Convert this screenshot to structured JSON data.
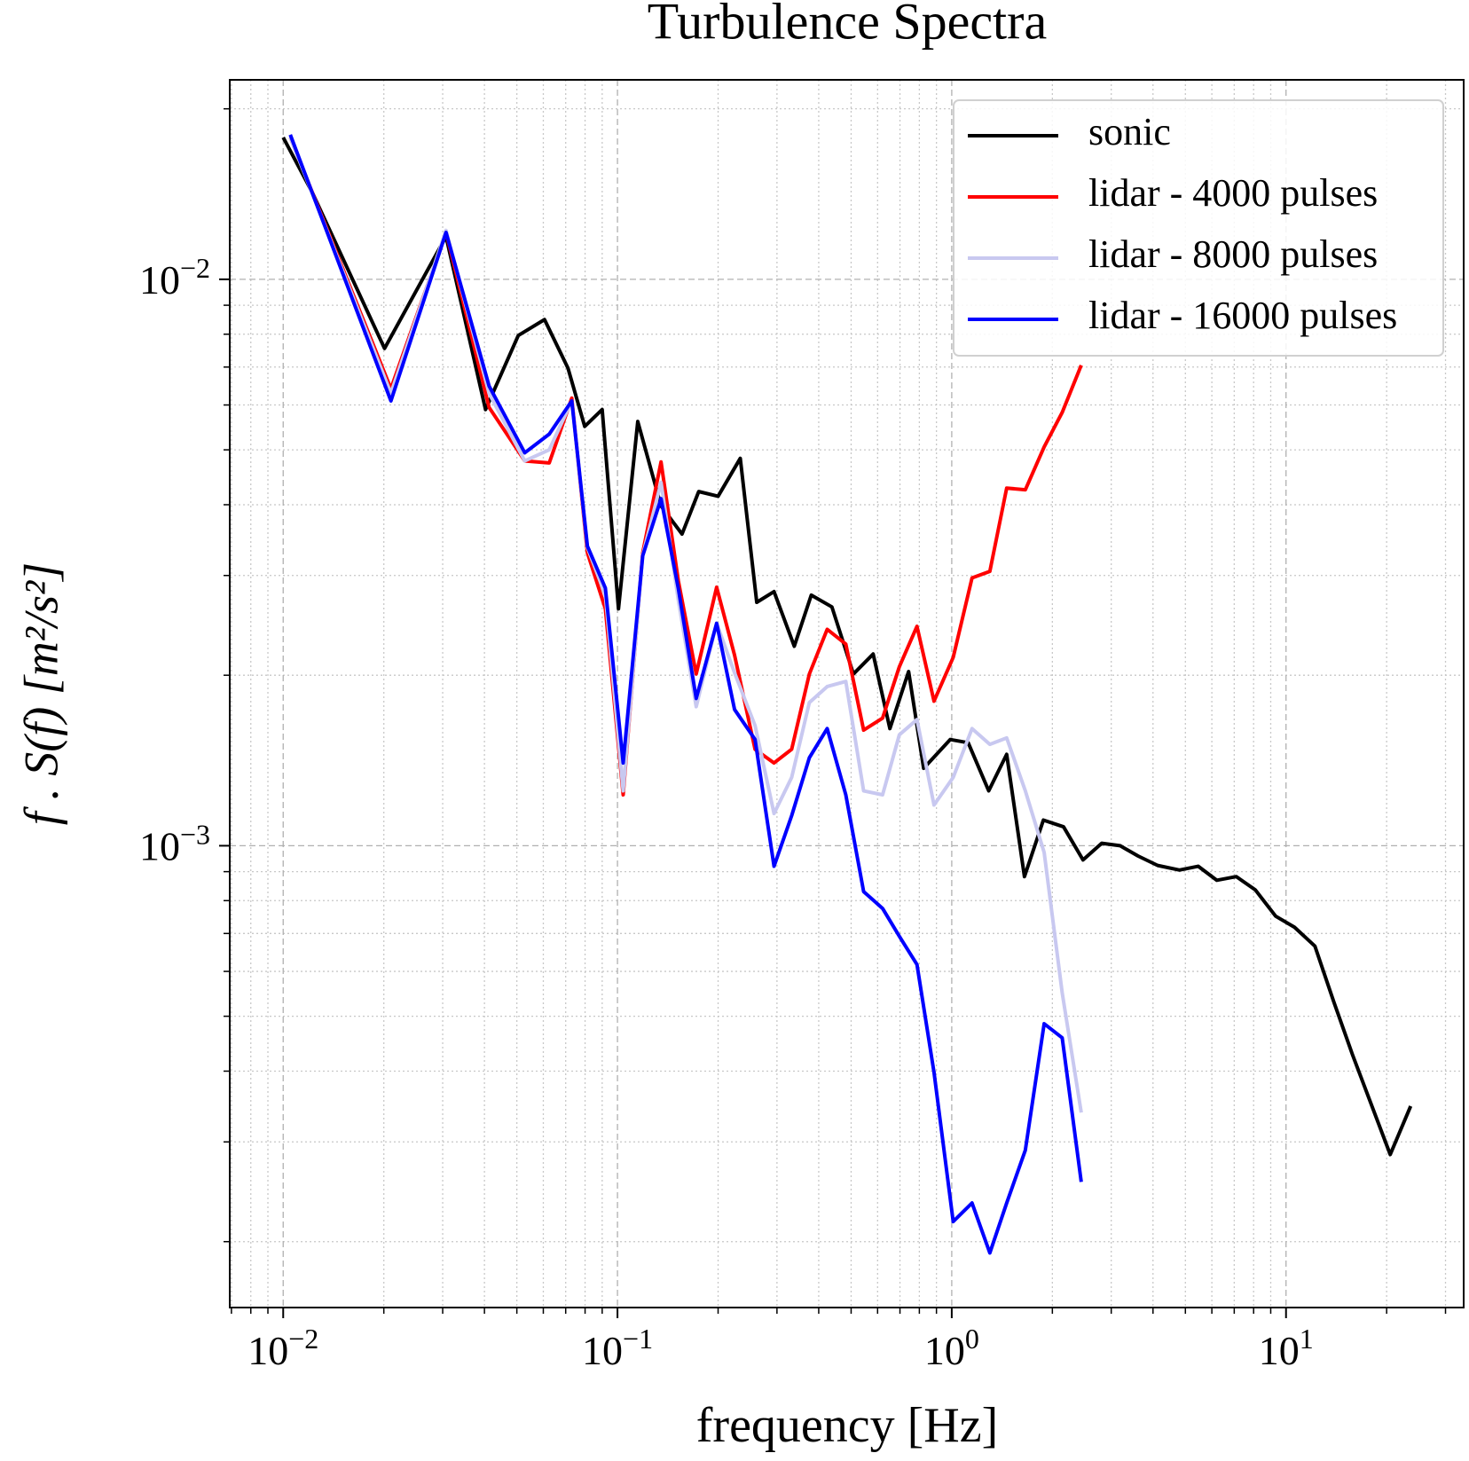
{
  "chart_data": {
    "type": "line",
    "title": "Turbulence Spectra",
    "x_label": "frequency [Hz]",
    "y_label": "f . S(f) [m²/s²]",
    "log_x": true,
    "log_y": true,
    "grid": true,
    "legend_position": "upper right",
    "xlim": [
      0.00692,
      34.0
    ],
    "ylim": [
      0.000153,
      0.0225
    ],
    "xticks": [
      {
        "value": 0.01,
        "label": "10−2"
      },
      {
        "value": 0.1,
        "label": "10−1"
      },
      {
        "value": 1,
        "label": "100"
      },
      {
        "value": 10,
        "label": "101"
      }
    ],
    "yticks": [
      {
        "value": 0.001,
        "label": "10−3"
      },
      {
        "value": 0.01,
        "label": "10−2"
      }
    ],
    "xminorticks": [
      0.007,
      0.008,
      0.009,
      0.02,
      0.03,
      0.04,
      0.05,
      0.06,
      0.07,
      0.08,
      0.09,
      0.2,
      0.3,
      0.4,
      0.5,
      0.6,
      0.7,
      0.8,
      0.9,
      2,
      3,
      4,
      5,
      6,
      7,
      8,
      9,
      20,
      30
    ],
    "yminorticks": [
      0.0002,
      0.0003,
      0.0004,
      0.0005,
      0.0006,
      0.0007,
      0.0008,
      0.0009,
      0.002,
      0.003,
      0.004,
      0.005,
      0.006,
      0.007,
      0.008,
      0.009,
      0.02
    ],
    "series": [
      {
        "name": "sonic",
        "color": "#000000",
        "x": [
          0.01,
          0.0122,
          0.0201,
          0.0307,
          0.0403,
          0.0505,
          0.0605,
          0.0711,
          0.0798,
          0.09,
          0.1007,
          0.115,
          0.135,
          0.156,
          0.175,
          0.2,
          0.233,
          0.261,
          0.294,
          0.338,
          0.38,
          0.438,
          0.508,
          0.582,
          0.653,
          0.743,
          0.824,
          0.99,
          1.12,
          1.29,
          1.46,
          1.65,
          1.88,
          2.16,
          2.47,
          2.81,
          3.19,
          3.61,
          4.13,
          4.8,
          5.46,
          6.21,
          7.1,
          8.09,
          9.31,
          10.6,
          12.2,
          13.9,
          15.8,
          20.5,
          23.6
        ],
        "values": [
          0.0178,
          0.01426,
          0.00755,
          0.0119,
          0.00589,
          0.00796,
          0.00849,
          0.00697,
          0.0055,
          0.00589,
          0.00262,
          0.00561,
          0.00398,
          0.00355,
          0.00422,
          0.00414,
          0.00483,
          0.00269,
          0.00281,
          0.00225,
          0.00277,
          0.00264,
          0.00201,
          0.00218,
          0.00161,
          0.00203,
          0.00137,
          0.00154,
          0.00152,
          0.00125,
          0.00145,
          0.000882,
          0.00111,
          0.00108,
          0.000944,
          0.00101,
          0.001,
          0.000959,
          0.000923,
          0.000906,
          0.00092,
          0.000869,
          0.000882,
          0.000836,
          0.000751,
          0.000718,
          0.000665,
          0.00053,
          0.000428,
          0.000285,
          0.000347
        ]
      },
      {
        "name": "lidar - 4000 pulses",
        "color": "#ff0000",
        "x": [
          0.0105,
          0.021,
          0.0307,
          0.0413,
          0.0528,
          0.0625,
          0.073,
          0.0813,
          0.092,
          0.104,
          0.119,
          0.135,
          0.152,
          0.172,
          0.198,
          0.224,
          0.258,
          0.294,
          0.332,
          0.375,
          0.424,
          0.482,
          0.545,
          0.621,
          0.697,
          0.787,
          0.885,
          1.01,
          1.15,
          1.3,
          1.46,
          1.66,
          1.89,
          2.14,
          2.44
        ],
        "values": [
          0.0178,
          0.00641,
          0.0121,
          0.00594,
          0.00478,
          0.00474,
          0.00617,
          0.00329,
          0.00262,
          0.00123,
          0.00329,
          0.00476,
          0.00294,
          0.00201,
          0.00286,
          0.00217,
          0.00148,
          0.0014,
          0.00148,
          0.00201,
          0.00241,
          0.00227,
          0.0016,
          0.00168,
          0.00207,
          0.00244,
          0.0018,
          0.00215,
          0.00297,
          0.00305,
          0.00428,
          0.00425,
          0.00506,
          0.00582,
          0.00705
        ]
      },
      {
        "name": "lidar - 8000 pulses",
        "color": "#c8c8f0",
        "x": [
          0.0105,
          0.021,
          0.0307,
          0.0413,
          0.0528,
          0.0625,
          0.073,
          0.0813,
          0.092,
          0.104,
          0.119,
          0.135,
          0.152,
          0.172,
          0.198,
          0.224,
          0.258,
          0.294,
          0.332,
          0.375,
          0.424,
          0.482,
          0.545,
          0.621,
          0.697,
          0.787,
          0.885,
          1.01,
          1.15,
          1.3,
          1.46,
          1.66,
          1.89,
          2.14,
          2.44
        ],
        "values": [
          0.0178,
          0.00629,
          0.0122,
          0.00629,
          0.00478,
          0.005,
          0.0061,
          0.00336,
          0.00277,
          0.00125,
          0.00326,
          0.00438,
          0.00272,
          0.00176,
          0.00247,
          0.00202,
          0.00163,
          0.00114,
          0.00132,
          0.00179,
          0.00191,
          0.00195,
          0.00125,
          0.00123,
          0.00157,
          0.00167,
          0.00118,
          0.00132,
          0.00161,
          0.00151,
          0.00155,
          0.00125,
          0.000973,
          0.00055,
          0.000338
        ]
      },
      {
        "name": "lidar - 16000 pulses",
        "color": "#0000ff",
        "x": [
          0.0105,
          0.021,
          0.0307,
          0.0413,
          0.0528,
          0.0625,
          0.073,
          0.0813,
          0.092,
          0.104,
          0.119,
          0.135,
          0.152,
          0.172,
          0.198,
          0.224,
          0.258,
          0.294,
          0.332,
          0.375,
          0.424,
          0.482,
          0.545,
          0.621,
          0.697,
          0.787,
          0.885,
          1.01,
          1.15,
          1.3,
          1.46,
          1.66,
          1.89,
          2.14,
          2.44
        ],
        "values": [
          0.018,
          0.0061,
          0.0121,
          0.00648,
          0.00494,
          0.00533,
          0.0061,
          0.00338,
          0.00285,
          0.0014,
          0.00325,
          0.0041,
          0.00285,
          0.00182,
          0.00247,
          0.00174,
          0.00154,
          0.00092,
          0.00113,
          0.00143,
          0.00161,
          0.00123,
          0.00083,
          0.000775,
          0.000692,
          0.000617,
          0.000398,
          0.000217,
          0.000234,
          0.000191,
          0.000234,
          0.00029,
          0.000485,
          0.000458,
          0.000255
        ]
      }
    ]
  }
}
